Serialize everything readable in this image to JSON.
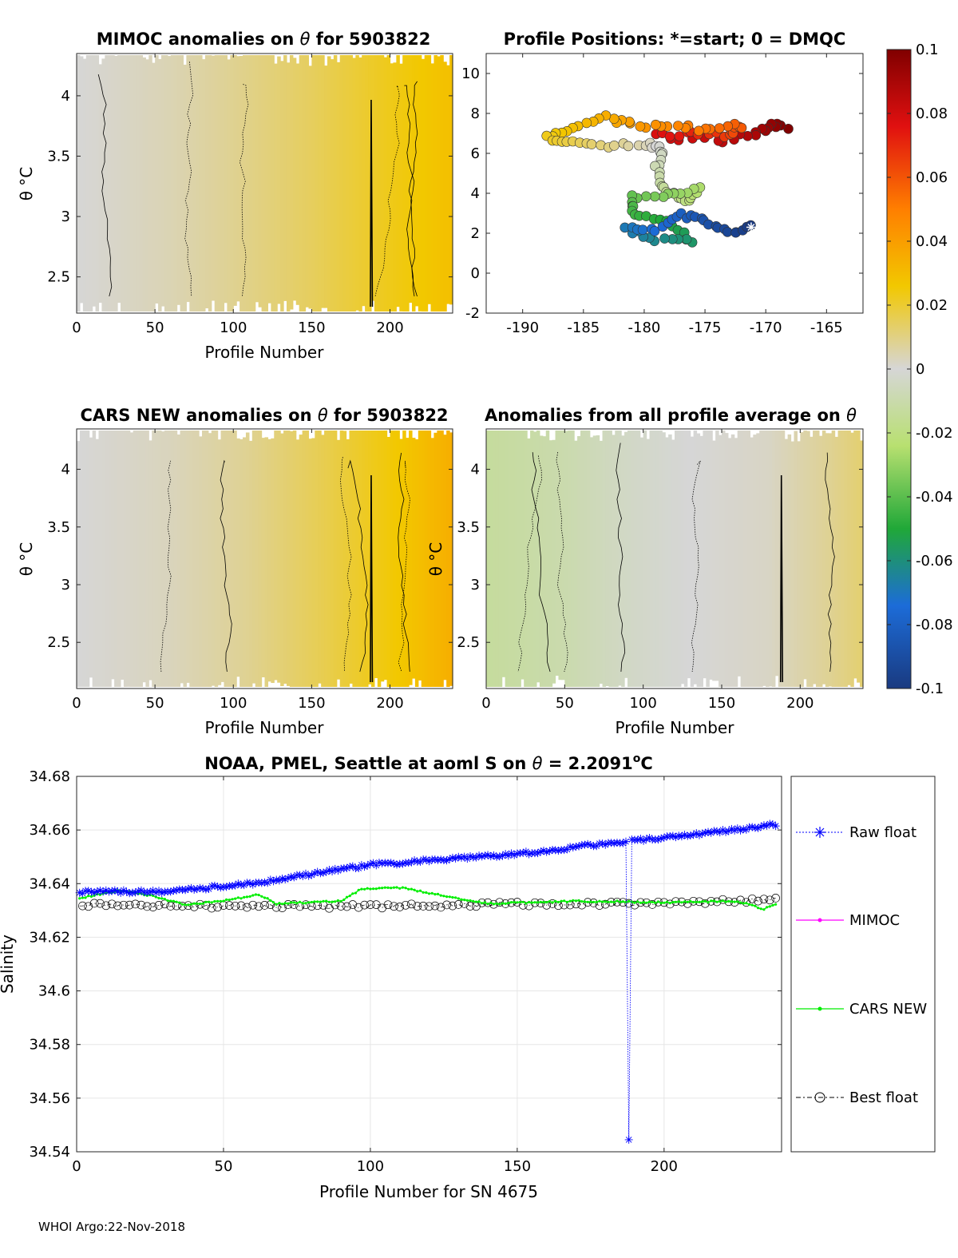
{
  "footer": "WHOI Argo:22-Nov-2018",
  "colors": {
    "raw": "#0000ff",
    "mimoc": "#ff00ff",
    "cars": "#00ee00",
    "best": "#000000",
    "grid": "#e6e6e6"
  },
  "chart_data": [
    {
      "id": "mimoc",
      "type": "heatmap",
      "title_pre": "MIMOC anomalies on ",
      "title_sym": "θ",
      "title_post": " for 5903822",
      "xlabel": "Profile Number",
      "ylabel": "θ °C",
      "xlim": [
        0,
        240
      ],
      "ylim": [
        2.2,
        4.35
      ],
      "xticks": [
        0,
        50,
        100,
        150,
        200
      ],
      "yticks": [
        2.5,
        3,
        3.5,
        4
      ],
      "xtick_labels": [
        "0",
        "50",
        "100",
        "150",
        "200"
      ],
      "ytick_labels": [
        "2.5",
        "3",
        "3.5",
        "4"
      ],
      "gradient": [
        [
          0,
          0.0
        ],
        [
          60,
          0.004
        ],
        [
          100,
          0.008
        ],
        [
          150,
          0.014
        ],
        [
          200,
          0.022
        ],
        [
          240,
          0.028
        ]
      ],
      "spike_x": 188,
      "ylabel_visible": true
    },
    {
      "id": "positions",
      "type": "scatter",
      "title": "Profile Positions: *=start; 0 = DMQC",
      "xlim": [
        -193,
        -162
      ],
      "ylim": [
        -2,
        11
      ],
      "xticks": [
        -190,
        -185,
        -180,
        -175,
        -170,
        -165
      ],
      "yticks": [
        -2,
        0,
        2,
        4,
        6,
        8,
        10
      ],
      "xtick_labels": [
        "-190",
        "-185",
        "-180",
        "-175",
        "-170",
        "-165"
      ],
      "ytick_labels": [
        "-2",
        "0",
        "2",
        "4",
        "6",
        "8",
        "10"
      ],
      "start": {
        "x": -171.2,
        "y": 2.3
      }
    },
    {
      "id": "cars",
      "type": "heatmap",
      "title_pre": "CARS NEW anomalies on ",
      "title_sym": "θ",
      "title_post": " for 5903822",
      "xlabel": "Profile Number",
      "ylabel": "θ °C",
      "xlim": [
        0,
        240
      ],
      "ylim": [
        2.1,
        4.35
      ],
      "xticks": [
        0,
        50,
        100,
        150,
        200
      ],
      "yticks": [
        2.5,
        3,
        3.5,
        4
      ],
      "xtick_labels": [
        "0",
        "50",
        "100",
        "150",
        "200"
      ],
      "ytick_labels": [
        "2.5",
        "3",
        "3.5",
        "4"
      ],
      "gradient": [
        [
          0,
          0.0
        ],
        [
          60,
          0.003
        ],
        [
          110,
          0.008
        ],
        [
          160,
          0.016
        ],
        [
          210,
          0.026
        ],
        [
          240,
          0.034
        ]
      ],
      "spike_x": 188
    },
    {
      "id": "anomalies",
      "type": "heatmap",
      "title_pre": "Anomalies from all profile average on ",
      "title_sym": "θ",
      "title_post": "",
      "xlabel": "Profile Number",
      "ylabel": "θ °C",
      "xlim": [
        0,
        240
      ],
      "ylim": [
        2.1,
        4.35
      ],
      "xticks": [
        0,
        50,
        100,
        150,
        200
      ],
      "yticks": [
        2.5,
        3,
        3.5,
        4
      ],
      "xtick_labels": [
        "0",
        "50",
        "100",
        "150",
        "200"
      ],
      "ytick_labels": [
        "2.5",
        "3",
        "3.5",
        "4"
      ],
      "gradient": [
        [
          0,
          -0.014
        ],
        [
          50,
          -0.01
        ],
        [
          90,
          -0.004
        ],
        [
          130,
          0.0
        ],
        [
          180,
          0.002
        ],
        [
          220,
          0.008
        ],
        [
          240,
          0.012
        ]
      ],
      "spike_x": 188
    },
    {
      "id": "colorbar",
      "type": "colorbar",
      "range": [
        -0.1,
        0.1
      ],
      "ticks": [
        0.1,
        0.08,
        0.06,
        0.04,
        0.02,
        0,
        -0.02,
        -0.04,
        -0.06,
        -0.08,
        -0.1
      ],
      "tick_labels": [
        "0.1",
        "0.08",
        "0.06",
        "0.04",
        "0.02",
        "0",
        "-0.02",
        "-0.04",
        "-0.06",
        "-0.08",
        "-0.1"
      ]
    },
    {
      "id": "salinity",
      "type": "line",
      "title_pre": "NOAA, PMEL, Seattle at aoml S on ",
      "title_sym": "θ",
      "title_mid": " = 2.2091",
      "title_sup": "o",
      "title_post": "C",
      "xlabel": "Profile Number for SN 4675",
      "ylabel": "Salinity",
      "xlim": [
        0,
        240
      ],
      "ylim": [
        34.54,
        34.68
      ],
      "xticks": [
        0,
        50,
        100,
        150,
        200
      ],
      "yticks": [
        34.54,
        34.56,
        34.58,
        34.6,
        34.62,
        34.64,
        34.66,
        34.68
      ],
      "xtick_labels": [
        "0",
        "50",
        "100",
        "150",
        "200"
      ],
      "ytick_labels": [
        "34.54",
        "34.56",
        "34.58",
        "34.6",
        "34.62",
        "34.64",
        "34.66",
        "34.68"
      ],
      "legend": [
        "Raw float",
        "MIMOC",
        "CARS NEW",
        "Best float"
      ],
      "raw_anchor": [
        [
          1,
          34.637
        ],
        [
          30,
          34.637
        ],
        [
          60,
          34.64
        ],
        [
          100,
          34.647
        ],
        [
          150,
          34.651
        ],
        [
          180,
          34.655
        ],
        [
          200,
          34.657
        ],
        [
          238,
          34.662
        ]
      ],
      "raw_outlier": {
        "x": 188,
        "y": 34.5445
      },
      "cars_anchor": [
        [
          1,
          34.6345
        ],
        [
          15,
          34.6375
        ],
        [
          25,
          34.6355
        ],
        [
          38,
          34.632
        ],
        [
          55,
          34.6345
        ],
        [
          62,
          34.636
        ],
        [
          68,
          34.6325
        ],
        [
          90,
          34.6335
        ],
        [
          97,
          34.638
        ],
        [
          110,
          34.6385
        ],
        [
          125,
          34.6355
        ],
        [
          140,
          34.6325
        ],
        [
          170,
          34.6335
        ],
        [
          200,
          34.633
        ],
        [
          225,
          34.6335
        ],
        [
          234,
          34.6305
        ],
        [
          238,
          34.6325
        ]
      ],
      "best_anchor": [
        [
          1,
          34.632
        ],
        [
          50,
          34.6315
        ],
        [
          100,
          34.6315
        ],
        [
          150,
          34.6325
        ],
        [
          200,
          34.6325
        ],
        [
          238,
          34.634
        ]
      ]
    }
  ]
}
